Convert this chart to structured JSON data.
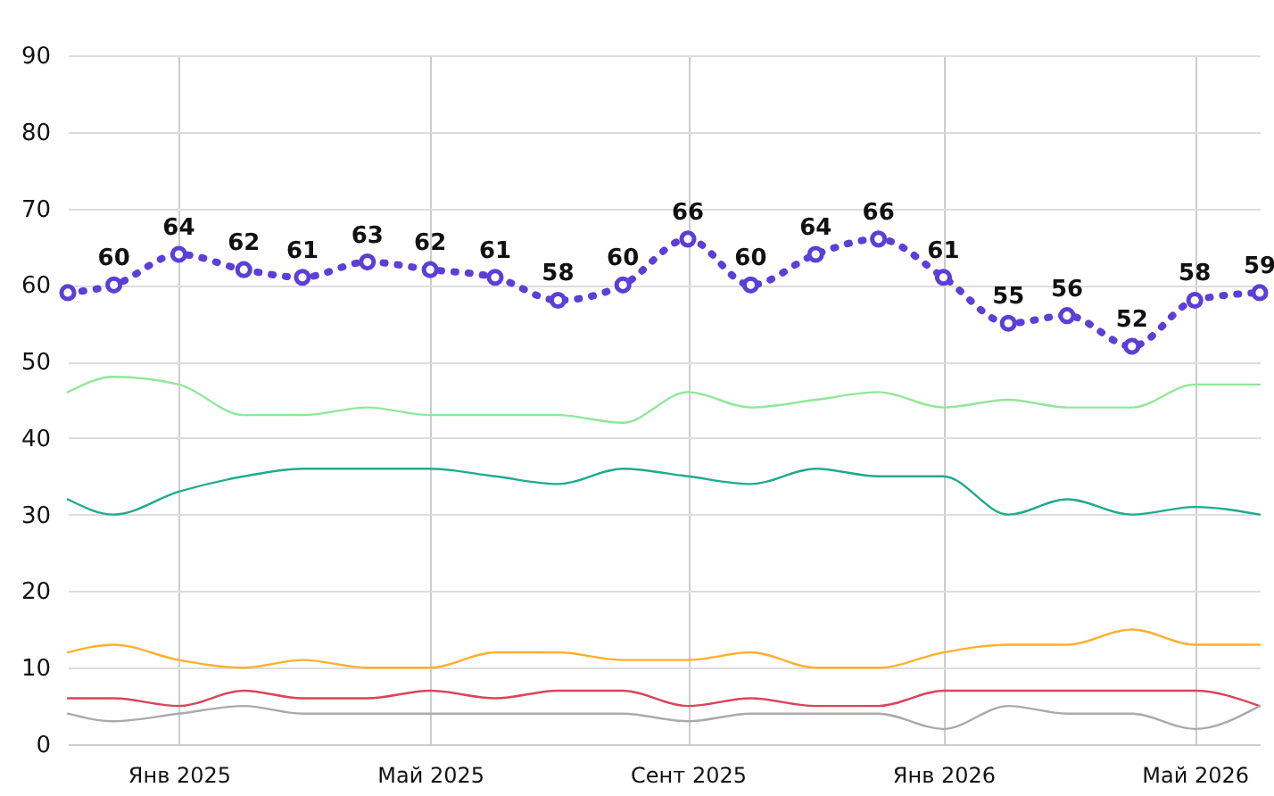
{
  "chart_data": {
    "type": "line",
    "x": [
      "2024-11-09",
      "2024-12-01",
      "2025-01-01",
      "2025-02-01",
      "2025-03-01",
      "2025-04-01",
      "2025-05-01",
      "2025-06-01",
      "2025-07-01",
      "2025-08-01",
      "2025-09-01",
      "2025-10-01",
      "2025-11-01",
      "2025-12-01",
      "2026-01-01",
      "2026-02-01",
      "2026-03-01",
      "2026-04-01",
      "2026-05-01",
      "2026-06-01"
    ],
    "series": [
      {
        "color": "#5b3fd6",
        "marker": "circle",
        "line_style": "dotted",
        "values": [
          59,
          60,
          64,
          62,
          61,
          63,
          62,
          61,
          58,
          60,
          66,
          60,
          64,
          66,
          61,
          55,
          56,
          52,
          58,
          59
        ],
        "value_labels": [
          null,
          "60",
          "64",
          "62",
          "61",
          "63",
          "62",
          "61",
          "58",
          "60",
          "66",
          "60",
          "64",
          "66",
          "61",
          "55",
          "56",
          "52",
          "58",
          "59"
        ]
      },
      {
        "color": "#90e89a",
        "marker": "none",
        "line_style": "solid",
        "values": [
          46,
          48,
          47,
          43,
          43,
          44,
          43,
          43,
          43,
          42,
          46,
          44,
          45,
          46,
          44,
          45,
          44,
          44,
          47,
          47
        ]
      },
      {
        "color": "#1fab8e",
        "marker": "none",
        "line_style": "solid",
        "values": [
          32,
          30,
          33,
          35,
          36,
          36,
          36,
          35,
          34,
          36,
          35,
          34,
          36,
          35,
          35,
          30,
          32,
          30,
          31,
          30
        ]
      },
      {
        "color": "#ffb02e",
        "marker": "none",
        "line_style": "solid",
        "values": [
          12,
          13,
          11,
          10,
          11,
          10,
          10,
          12,
          12,
          11,
          11,
          12,
          10,
          10,
          12,
          13,
          13,
          15,
          13,
          13
        ]
      },
      {
        "color": "#d9455a",
        "marker": "none",
        "line_style": "solid",
        "values": [
          6,
          6,
          5,
          7,
          6,
          6,
          7,
          6,
          7,
          7,
          5,
          6,
          5,
          5,
          7,
          7,
          7,
          7,
          7,
          5
        ]
      },
      {
        "color": "#aaaaaa",
        "marker": "none",
        "line_style": "solid",
        "values": [
          4,
          3,
          4,
          5,
          4,
          4,
          4,
          4,
          4,
          4,
          3,
          4,
          4,
          4,
          2,
          5,
          4,
          4,
          2,
          5
        ]
      }
    ],
    "xlim": [
      "2024-11-09",
      "2026-06-01"
    ],
    "xticks": [
      {
        "value": "2025-01-01",
        "label": "Янв 2025"
      },
      {
        "value": "2025-05-01",
        "label": "Май 2025"
      },
      {
        "value": "2025-09-01",
        "label": "Сент 2025"
      },
      {
        "value": "2026-01-01",
        "label": "Янв 2026"
      },
      {
        "value": "2026-05-01",
        "label": "Май 2026"
      }
    ],
    "ylim": [
      0,
      90
    ],
    "yticks": [
      0,
      10,
      20,
      30,
      40,
      50,
      60,
      70,
      80,
      90
    ],
    "grid": true
  }
}
